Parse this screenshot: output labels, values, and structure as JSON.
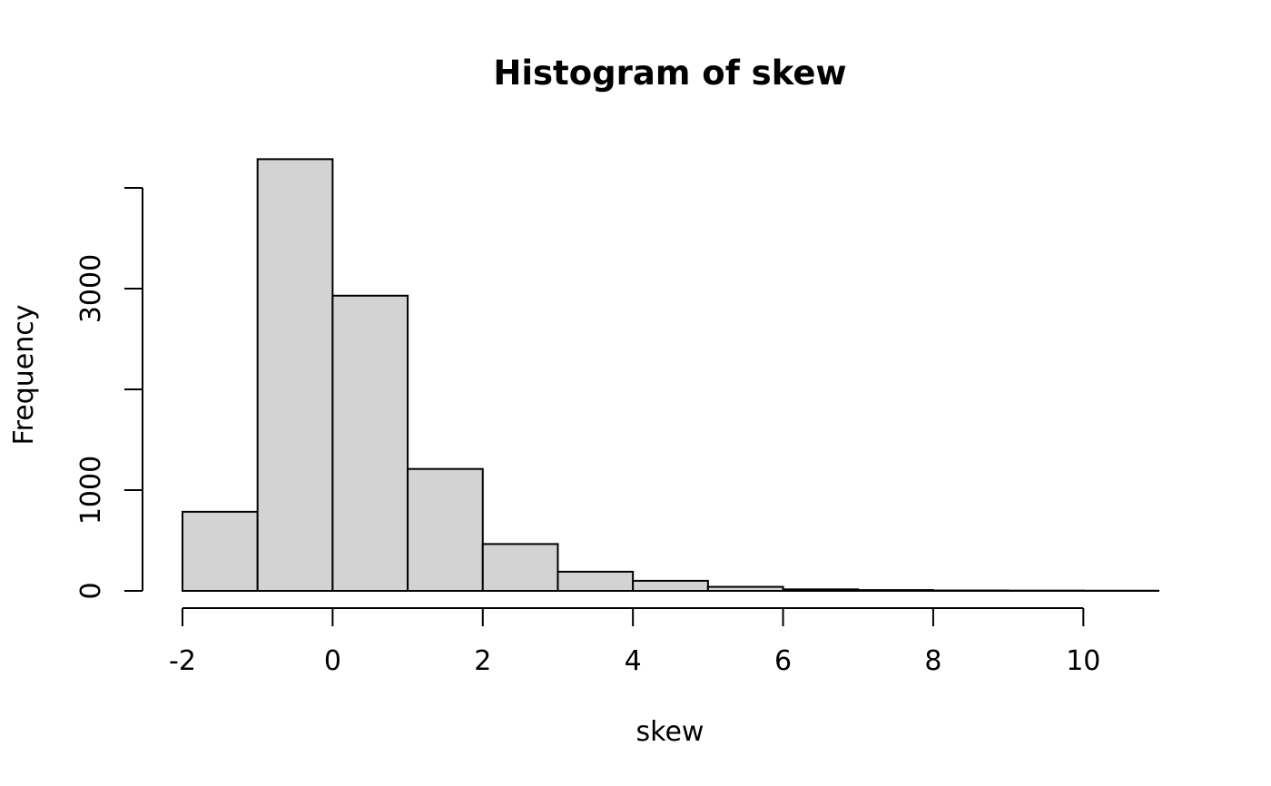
{
  "chart_data": {
    "type": "bar",
    "title": "Histogram of skew",
    "xlabel": "skew",
    "ylabel": "Frequency",
    "bins": [
      {
        "from": -2,
        "to": -1,
        "count": 785
      },
      {
        "from": -1,
        "to": 0,
        "count": 4285
      },
      {
        "from": 0,
        "to": 1,
        "count": 2930
      },
      {
        "from": 1,
        "to": 2,
        "count": 1210
      },
      {
        "from": 2,
        "to": 3,
        "count": 465
      },
      {
        "from": 3,
        "to": 4,
        "count": 190
      },
      {
        "from": 4,
        "to": 5,
        "count": 100
      },
      {
        "from": 5,
        "to": 6,
        "count": 40
      },
      {
        "from": 6,
        "to": 7,
        "count": 15
      },
      {
        "from": 7,
        "to": 8,
        "count": 8
      },
      {
        "from": 8,
        "to": 9,
        "count": 4
      },
      {
        "from": 9,
        "to": 10,
        "count": 3
      },
      {
        "from": 10,
        "to": 11,
        "count": 2
      }
    ],
    "xlim": [
      -2,
      11
    ],
    "ylim": [
      0,
      4000
    ],
    "x_ticks": [
      -2,
      0,
      2,
      4,
      6,
      8,
      10
    ],
    "x_tick_labels": [
      "-2",
      "0",
      "2",
      "4",
      "6",
      "8",
      "10"
    ],
    "y_ticks": [
      0,
      1000,
      2000,
      3000,
      4000
    ],
    "y_tick_labels": [
      "0",
      "1000",
      "",
      "3000",
      ""
    ],
    "grid": false,
    "legend": "none",
    "bar_color": "#d3d3d3",
    "edge_color": "#000000"
  }
}
